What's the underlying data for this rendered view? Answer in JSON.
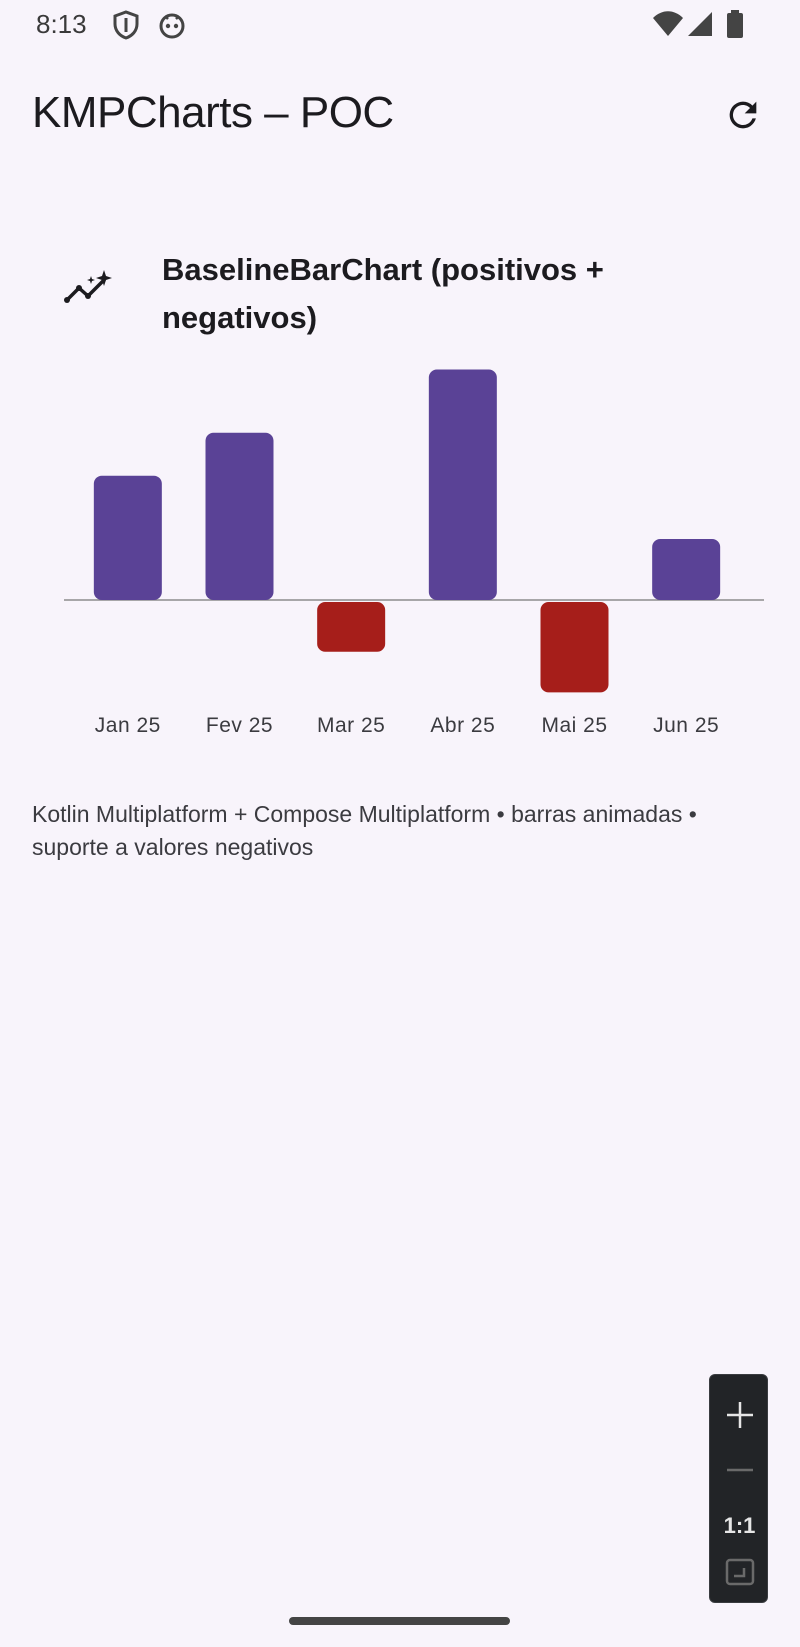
{
  "status_bar": {
    "time": "8:13",
    "icons": [
      "shield-icon",
      "robot-face-icon",
      "wifi-icon",
      "signal-icon",
      "battery-icon"
    ]
  },
  "app_bar": {
    "title": "KMPCharts – POC",
    "refresh_icon": "refresh-icon"
  },
  "card": {
    "icon": "sparkle-line-chart-icon",
    "title_line1": "BaselineBarChart (positivos +",
    "title_line2": "negativos)"
  },
  "chart_data": {
    "type": "bar",
    "title": "BaselineBarChart (positivos + negativos)",
    "categories": [
      "Jan 25",
      "Fev 25",
      "Mar 25",
      "Abr 25",
      "Mai 25",
      "Jun 25"
    ],
    "values": [
      55,
      74,
      -22,
      102,
      -40,
      27
    ],
    "baseline": 0,
    "ylim": [
      -45,
      105
    ],
    "grid": false,
    "legend": "none",
    "colors": {
      "positive": "#5a4296",
      "negative": "#a61e1a",
      "baseline": "#8c8c8c"
    }
  },
  "caption": "Kotlin Multiplatform + Compose Multiplatform • barras animadas • suporte a valores negativos",
  "zoom_controls": {
    "zoom_in_icon": "plus-icon",
    "zoom_out_icon": "minus-icon",
    "ratio_label": "1:1",
    "fit_icon": "fit-screen-icon"
  }
}
